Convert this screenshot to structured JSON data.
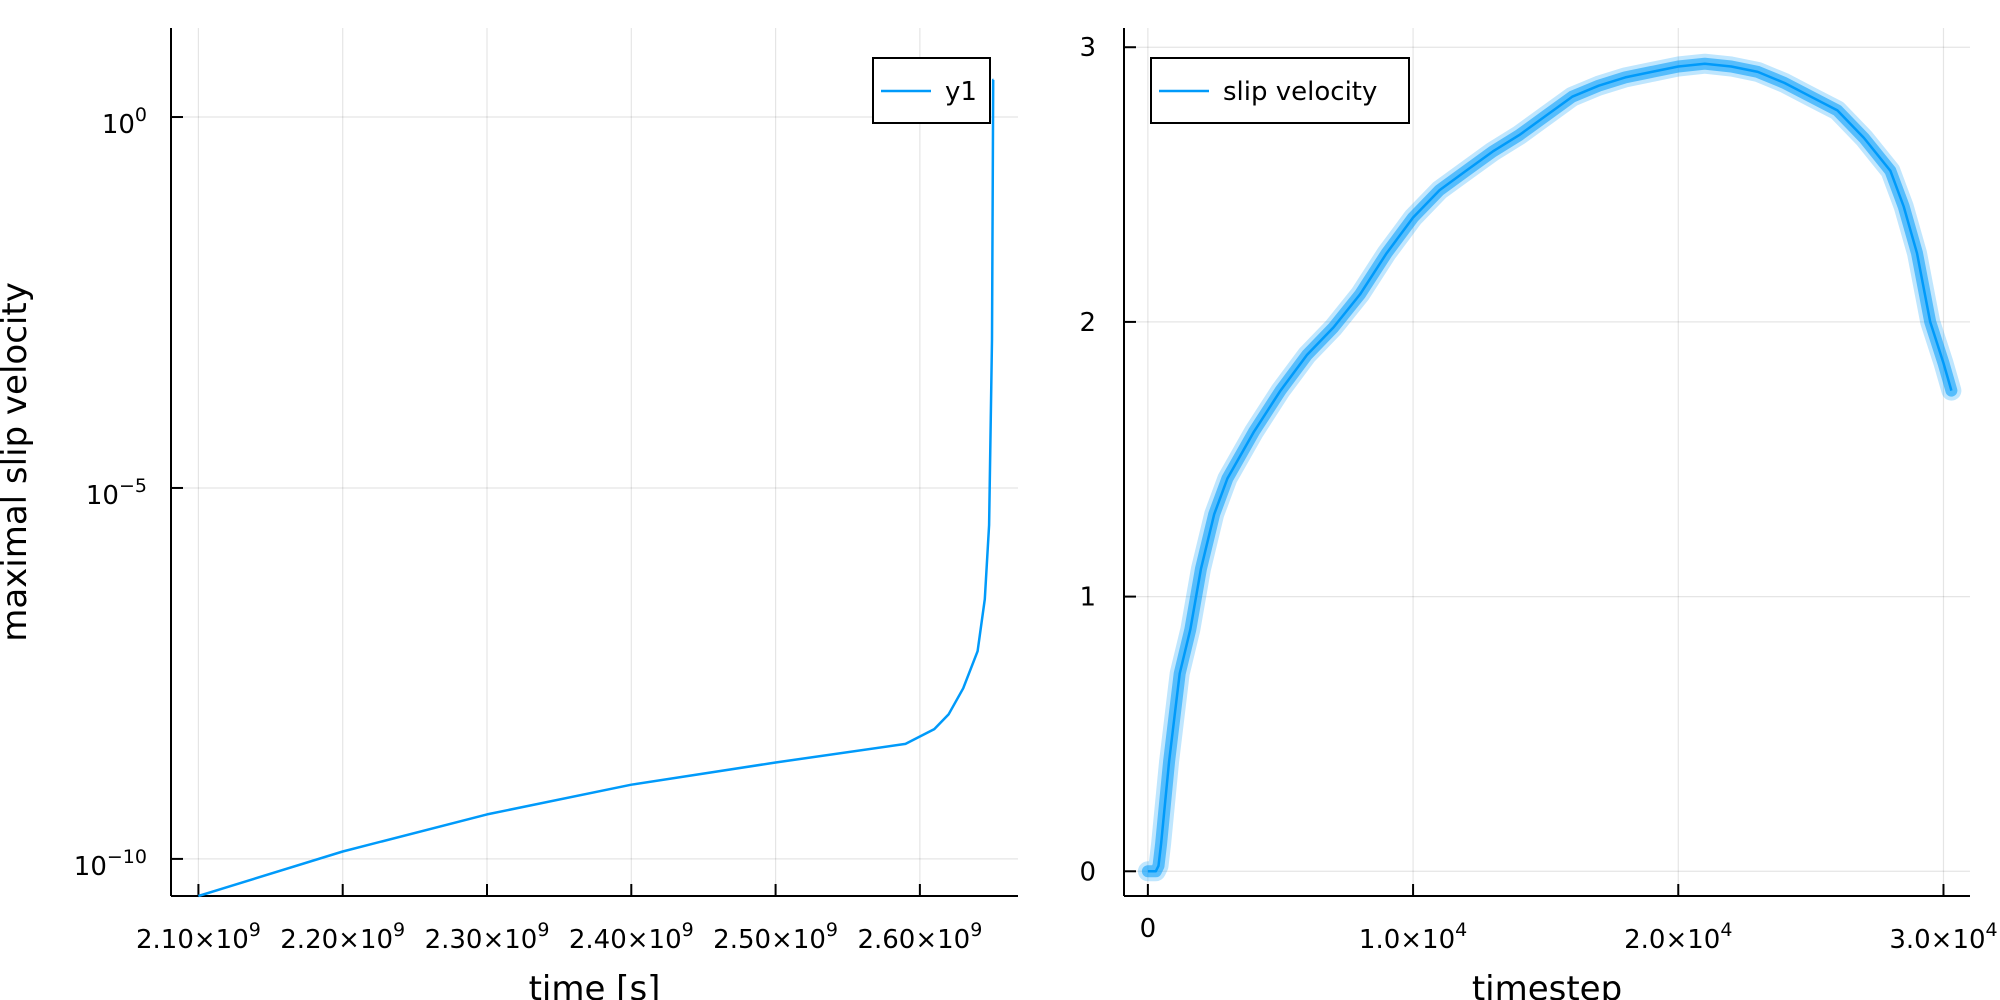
{
  "chart_data": [
    {
      "type": "line",
      "xlabel": "time [s]",
      "ylabel": "maximal slip velocity",
      "yscale": "log",
      "xlim": [
        2081000000.0,
        2668000000.0
      ],
      "ylim_exp": [
        -10.5,
        1.2
      ],
      "grid": true,
      "legend_position": "top-right",
      "xticks": [
        {
          "value": 2100000000.0,
          "mant": "2.10",
          "exp": "9"
        },
        {
          "value": 2200000000.0,
          "mant": "2.20",
          "exp": "9"
        },
        {
          "value": 2300000000.0,
          "mant": "2.30",
          "exp": "9"
        },
        {
          "value": 2400000000.0,
          "mant": "2.40",
          "exp": "9"
        },
        {
          "value": 2500000000.0,
          "mant": "2.50",
          "exp": "9"
        },
        {
          "value": 2600000000.0,
          "mant": "2.60",
          "exp": "9"
        }
      ],
      "yticks": [
        {
          "exp_value": 0,
          "base": "10",
          "exp": "0"
        },
        {
          "exp_value": -5,
          "base": "10",
          "exp": "−5"
        },
        {
          "exp_value": -10,
          "base": "10",
          "exp": "−10"
        }
      ],
      "series": [
        {
          "name": "y1",
          "color": "#009AFA",
          "x": [
            2100000000.0,
            2200000000.0,
            2300000000.0,
            2400000000.0,
            2500000000.0,
            2590000000.0,
            2610000000.0,
            2620000000.0,
            2630000000.0,
            2640000000.0,
            2645000000.0,
            2648000000.0,
            2650000000.0,
            2650500000.0,
            2650800000.0,
            2651000000.0
          ],
          "y_exp": [
            -10.5,
            -9.9,
            -9.4,
            -9.0,
            -8.7,
            -8.45,
            -8.25,
            -8.05,
            -7.7,
            -7.2,
            -6.5,
            -5.5,
            -3.0,
            -1.0,
            0.5,
            0.5
          ]
        }
      ]
    },
    {
      "type": "line",
      "xlabel": "timestep",
      "ylabel": "",
      "xlim": [
        -900,
        31000
      ],
      "ylim": [
        -0.09,
        3.07
      ],
      "grid": true,
      "legend_position": "top-left",
      "xticks": [
        {
          "value": 0,
          "mant": "0",
          "exp": ""
        },
        {
          "value": 10000,
          "mant": "1.0",
          "exp": "4"
        },
        {
          "value": 20000,
          "mant": "2.0",
          "exp": "4"
        },
        {
          "value": 30000,
          "mant": "3.0",
          "exp": "4"
        }
      ],
      "yticks": [
        0,
        1,
        2,
        3
      ],
      "series": [
        {
          "name": "slip velocity",
          "color": "#009AFA",
          "x": [
            0,
            300,
            400,
            500,
            800,
            1200,
            1600,
            2000,
            2500,
            3000,
            4000,
            5000,
            6000,
            7000,
            8000,
            9000,
            10000,
            11000,
            12000,
            13000,
            14000,
            15000,
            16000,
            17000,
            18000,
            19000,
            20000,
            21000,
            22000,
            23000,
            24000,
            25000,
            26000,
            27000,
            28000,
            28500,
            29000,
            29500,
            30000,
            30300
          ],
          "y": [
            0,
            0,
            0.02,
            0.1,
            0.4,
            0.72,
            0.88,
            1.1,
            1.3,
            1.43,
            1.6,
            1.75,
            1.88,
            1.98,
            2.1,
            2.25,
            2.38,
            2.48,
            2.55,
            2.62,
            2.68,
            2.75,
            2.82,
            2.86,
            2.89,
            2.91,
            2.93,
            2.94,
            2.93,
            2.91,
            2.87,
            2.82,
            2.77,
            2.67,
            2.55,
            2.42,
            2.25,
            2.0,
            1.85,
            1.75
          ]
        }
      ]
    }
  ]
}
